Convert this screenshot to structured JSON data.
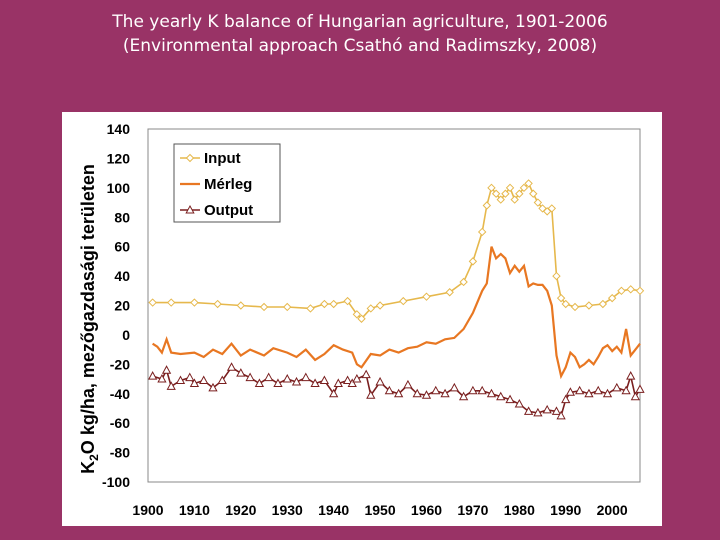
{
  "title": {
    "line1": "The yearly K balance of Hungarian agriculture, 1901-2006",
    "line2": "(Environmental approach Csathó and Radimszky, 2008)"
  },
  "chart_data": {
    "type": "line",
    "ylabel_parts": [
      "K",
      "2",
      "O kg/ha, mezőgazdasági területen"
    ],
    "xlim": [
      1900,
      2006
    ],
    "ylim": [
      -100,
      140
    ],
    "x_ticks": [
      "1900",
      "1910",
      "1920",
      "1930",
      "1940",
      "1950",
      "1960",
      "1970",
      "1980",
      "1990",
      "2000"
    ],
    "y_ticks": [
      "140",
      "120",
      "100",
      "80",
      "60",
      "40",
      "20",
      "0",
      "-20",
      "-40",
      "-60",
      "-80",
      "-100"
    ],
    "legend_position": "top-left",
    "series": [
      {
        "name": "Input",
        "color": "#E6B84C",
        "marker": "diamond",
        "points": [
          [
            1901,
            22
          ],
          [
            1905,
            22
          ],
          [
            1910,
            22
          ],
          [
            1915,
            21
          ],
          [
            1920,
            20
          ],
          [
            1925,
            19
          ],
          [
            1930,
            19
          ],
          [
            1935,
            18
          ],
          [
            1938,
            21
          ],
          [
            1940,
            21
          ],
          [
            1943,
            23
          ],
          [
            1945,
            14
          ],
          [
            1946,
            11
          ],
          [
            1948,
            18
          ],
          [
            1950,
            20
          ],
          [
            1955,
            23
          ],
          [
            1960,
            26
          ],
          [
            1965,
            29
          ],
          [
            1968,
            36
          ],
          [
            1970,
            50
          ],
          [
            1972,
            70
          ],
          [
            1973,
            88
          ],
          [
            1974,
            100
          ],
          [
            1975,
            96
          ],
          [
            1976,
            92
          ],
          [
            1977,
            96
          ],
          [
            1978,
            100
          ],
          [
            1979,
            92
          ],
          [
            1980,
            96
          ],
          [
            1981,
            100
          ],
          [
            1982,
            103
          ],
          [
            1983,
            96
          ],
          [
            1984,
            90
          ],
          [
            1985,
            86
          ],
          [
            1986,
            84
          ],
          [
            1987,
            86
          ],
          [
            1988,
            40
          ],
          [
            1989,
            25
          ],
          [
            1990,
            21
          ],
          [
            1992,
            19
          ],
          [
            1995,
            20
          ],
          [
            1998,
            21
          ],
          [
            2000,
            25
          ],
          [
            2002,
            30
          ],
          [
            2004,
            31
          ],
          [
            2006,
            30
          ]
        ]
      },
      {
        "name": "Mérleg",
        "color": "#E87722",
        "marker": "none",
        "points": [
          [
            1901,
            -6
          ],
          [
            1902,
            -8
          ],
          [
            1903,
            -12
          ],
          [
            1904,
            -3
          ],
          [
            1905,
            -12
          ],
          [
            1907,
            -13
          ],
          [
            1910,
            -12
          ],
          [
            1912,
            -15
          ],
          [
            1914,
            -10
          ],
          [
            1916,
            -13
          ],
          [
            1918,
            -6
          ],
          [
            1920,
            -14
          ],
          [
            1922,
            -10
          ],
          [
            1925,
            -14
          ],
          [
            1927,
            -9
          ],
          [
            1930,
            -12
          ],
          [
            1932,
            -15
          ],
          [
            1934,
            -10
          ],
          [
            1936,
            -17
          ],
          [
            1938,
            -13
          ],
          [
            1940,
            -7
          ],
          [
            1942,
            -10
          ],
          [
            1944,
            -12
          ],
          [
            1945,
            -20
          ],
          [
            1946,
            -22
          ],
          [
            1948,
            -13
          ],
          [
            1950,
            -14
          ],
          [
            1952,
            -10
          ],
          [
            1954,
            -12
          ],
          [
            1956,
            -9
          ],
          [
            1958,
            -8
          ],
          [
            1960,
            -5
          ],
          [
            1962,
            -6
          ],
          [
            1964,
            -3
          ],
          [
            1966,
            -2
          ],
          [
            1968,
            4
          ],
          [
            1970,
            15
          ],
          [
            1972,
            30
          ],
          [
            1973,
            35
          ],
          [
            1974,
            60
          ],
          [
            1975,
            52
          ],
          [
            1976,
            55
          ],
          [
            1977,
            52
          ],
          [
            1978,
            42
          ],
          [
            1979,
            47
          ],
          [
            1980,
            43
          ],
          [
            1981,
            47
          ],
          [
            1982,
            33
          ],
          [
            1983,
            35
          ],
          [
            1984,
            34
          ],
          [
            1985,
            34
          ],
          [
            1986,
            30
          ],
          [
            1987,
            20
          ],
          [
            1988,
            -14
          ],
          [
            1989,
            -28
          ],
          [
            1990,
            -22
          ],
          [
            1991,
            -12
          ],
          [
            1992,
            -15
          ],
          [
            1993,
            -22
          ],
          [
            1994,
            -20
          ],
          [
            1995,
            -17
          ],
          [
            1996,
            -20
          ],
          [
            1997,
            -15
          ],
          [
            1998,
            -9
          ],
          [
            1999,
            -7
          ],
          [
            2000,
            -11
          ],
          [
            2001,
            -8
          ],
          [
            2002,
            -12
          ],
          [
            2003,
            4
          ],
          [
            2004,
            -14
          ],
          [
            2005,
            -10
          ],
          [
            2006,
            -6
          ]
        ]
      },
      {
        "name": "Output",
        "color": "#7A1F1F",
        "marker": "triangle",
        "points": [
          [
            1901,
            -28
          ],
          [
            1903,
            -30
          ],
          [
            1904,
            -24
          ],
          [
            1905,
            -35
          ],
          [
            1907,
            -31
          ],
          [
            1909,
            -29
          ],
          [
            1910,
            -33
          ],
          [
            1912,
            -31
          ],
          [
            1914,
            -36
          ],
          [
            1916,
            -31
          ],
          [
            1918,
            -22
          ],
          [
            1920,
            -26
          ],
          [
            1922,
            -29
          ],
          [
            1924,
            -33
          ],
          [
            1926,
            -29
          ],
          [
            1928,
            -33
          ],
          [
            1930,
            -30
          ],
          [
            1932,
            -32
          ],
          [
            1934,
            -29
          ],
          [
            1936,
            -33
          ],
          [
            1938,
            -31
          ],
          [
            1940,
            -40
          ],
          [
            1941,
            -33
          ],
          [
            1943,
            -31
          ],
          [
            1944,
            -33
          ],
          [
            1945,
            -30
          ],
          [
            1947,
            -27
          ],
          [
            1948,
            -41
          ],
          [
            1950,
            -32
          ],
          [
            1952,
            -38
          ],
          [
            1954,
            -40
          ],
          [
            1956,
            -34
          ],
          [
            1958,
            -40
          ],
          [
            1960,
            -41
          ],
          [
            1962,
            -38
          ],
          [
            1964,
            -40
          ],
          [
            1966,
            -36
          ],
          [
            1968,
            -42
          ],
          [
            1970,
            -38
          ],
          [
            1972,
            -38
          ],
          [
            1974,
            -40
          ],
          [
            1976,
            -42
          ],
          [
            1978,
            -44
          ],
          [
            1980,
            -47
          ],
          [
            1982,
            -52
          ],
          [
            1984,
            -53
          ],
          [
            1986,
            -51
          ],
          [
            1988,
            -52
          ],
          [
            1989,
            -55
          ],
          [
            1990,
            -44
          ],
          [
            1991,
            -39
          ],
          [
            1993,
            -38
          ],
          [
            1995,
            -40
          ],
          [
            1997,
            -38
          ],
          [
            1999,
            -40
          ],
          [
            2001,
            -36
          ],
          [
            2003,
            -38
          ],
          [
            2004,
            -28
          ],
          [
            2005,
            -42
          ],
          [
            2006,
            -37
          ]
        ]
      }
    ]
  }
}
